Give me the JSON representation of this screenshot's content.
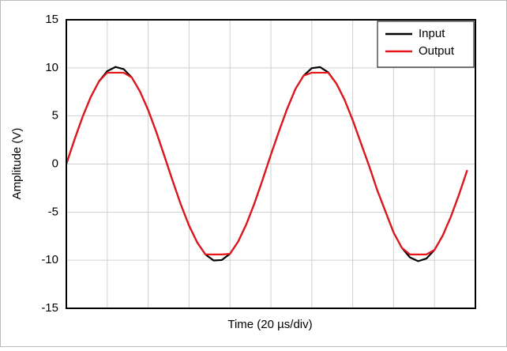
{
  "chart_data": {
    "type": "line",
    "xlabel": "Time (20 µs/div)",
    "ylabel": "Amplitude (V)",
    "x": [
      0,
      4,
      8,
      12,
      16,
      20,
      24,
      28,
      32,
      36,
      40,
      44,
      48,
      52,
      56,
      60,
      64,
      68,
      72,
      76,
      80,
      84,
      88,
      92,
      96,
      100,
      104,
      108,
      112,
      116,
      120,
      124,
      128,
      132,
      136,
      140,
      144,
      148,
      152,
      156,
      160,
      164,
      168,
      172,
      176,
      180,
      184,
      188,
      192,
      196
    ],
    "series": [
      {
        "name": "Input",
        "color": "#000000",
        "values": [
          0,
          2.55,
          4.93,
          7.0,
          8.61,
          9.66,
          10.09,
          9.87,
          9.0,
          7.55,
          5.62,
          3.32,
          0.8,
          -1.76,
          -4.22,
          -6.4,
          -8.16,
          -9.4,
          -10.03,
          -9.98,
          -9.34,
          -8.06,
          -6.27,
          -4.07,
          -1.6,
          0.97,
          3.43,
          5.76,
          7.8,
          9.19,
          9.97,
          10.08,
          9.54,
          8.38,
          6.7,
          4.57,
          2.19,
          -0.17,
          -2.71,
          -4.92,
          -7.12,
          -8.7,
          -9.71,
          -10.1,
          -9.83,
          -8.93,
          -7.44,
          -5.48,
          -3.16,
          -0.64
        ]
      },
      {
        "name": "Output",
        "color": "#e8141a",
        "values": [
          0,
          2.55,
          4.93,
          7.0,
          8.61,
          9.5,
          9.5,
          9.5,
          9.0,
          7.55,
          5.62,
          3.32,
          0.8,
          -1.76,
          -4.22,
          -6.4,
          -8.16,
          -9.4,
          -9.4,
          -9.4,
          -9.34,
          -8.06,
          -6.27,
          -4.07,
          -1.6,
          0.97,
          3.43,
          5.76,
          7.8,
          9.19,
          9.5,
          9.5,
          9.5,
          8.38,
          6.7,
          4.57,
          2.19,
          -0.17,
          -2.71,
          -4.92,
          -7.12,
          -8.7,
          -9.4,
          -9.4,
          -9.4,
          -8.93,
          -7.44,
          -5.48,
          -3.16,
          -0.64
        ]
      }
    ],
    "xlim": [
      0,
      200
    ],
    "xticks": [
      0,
      20,
      40,
      60,
      80,
      100,
      120,
      140,
      160,
      180,
      200
    ],
    "ylim": [
      -15,
      15
    ],
    "yticks": [
      -15,
      -10,
      -5,
      0,
      5,
      10,
      15
    ],
    "grid": true,
    "legend": "upper right"
  }
}
